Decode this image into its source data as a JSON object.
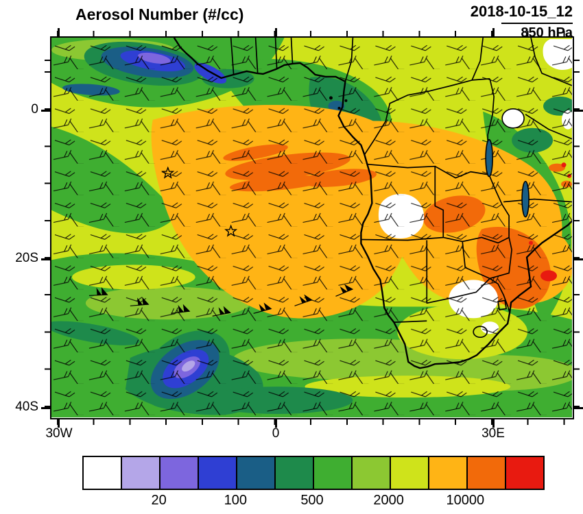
{
  "header": {
    "title": "Aerosol Number (#/cc)",
    "datetime": "2018-10-15_12",
    "level": "850 hPa"
  },
  "axes": {
    "y_labels": [
      "0",
      "20S",
      "40S"
    ],
    "x_labels": [
      "30W",
      "0",
      "30E"
    ]
  },
  "colorbar": {
    "colors": [
      "#ffffff",
      "#b4a6e8",
      "#7d66de",
      "#2f3fd3",
      "#1a5e86",
      "#1e8a4b",
      "#3fae31",
      "#8cc832",
      "#cfe31b",
      "#ffb415",
      "#f26a0a",
      "#e81a10"
    ],
    "labels": [
      "20",
      "100",
      "500",
      "2000",
      "10000"
    ]
  },
  "chart_data": {
    "type": "heatmap",
    "subtype": "filled-contour geographic map with wind barbs",
    "title": "Aerosol Number (#/cc)",
    "timestamp_label": "2018-10-15_12",
    "level_label": "850 hPa",
    "region": "Africa and South Atlantic",
    "x_axis": {
      "tick_labels": [
        "30W",
        "0",
        "30E"
      ],
      "approx_range_deg_lon": [
        -31,
        41
      ]
    },
    "y_axis": {
      "tick_labels": [
        "0",
        "20S",
        "40S"
      ],
      "approx_range_deg_lat": [
        -41,
        10
      ]
    },
    "colorbar": {
      "n_bins": 12,
      "labeled_levels": [
        20,
        100,
        500,
        2000,
        10000
      ],
      "units": "#/cc",
      "orientation": "horizontal",
      "position": "bottom"
    },
    "overlays": [
      "wind barbs",
      "coastlines",
      "country borders",
      "lakes",
      "star markers"
    ],
    "star_markers_approx_lonlat": [
      [
        -15,
        -8.5
      ],
      [
        -6,
        -16.3
      ]
    ],
    "regions_depicted": [
      {
        "description": "Large elevated aerosol plume over SE Atlantic off Angola/Namibia extending over southern Africa (Angola, Zambia, Zimbabwe, Mozambique)",
        "approx_value": "2000-20000"
      },
      {
        "description": "Orange/red cores inside plume and over Zambia/Zimbabwe/Mozambique coast",
        "approx_value": "10000-20000"
      },
      {
        "description": "Clean marine minima: NW corner of domain and Southern Ocean southwest of Cape",
        "approx_value": "20-200"
      },
      {
        "description": "Background green/yellow-green over most remaining ocean and land",
        "approx_value": "500-2000"
      },
      {
        "description": "Small white (lowest/no-data) patches over western Zambia, NE South Africa and NE corner",
        "approx_value": "< 20"
      }
    ]
  }
}
